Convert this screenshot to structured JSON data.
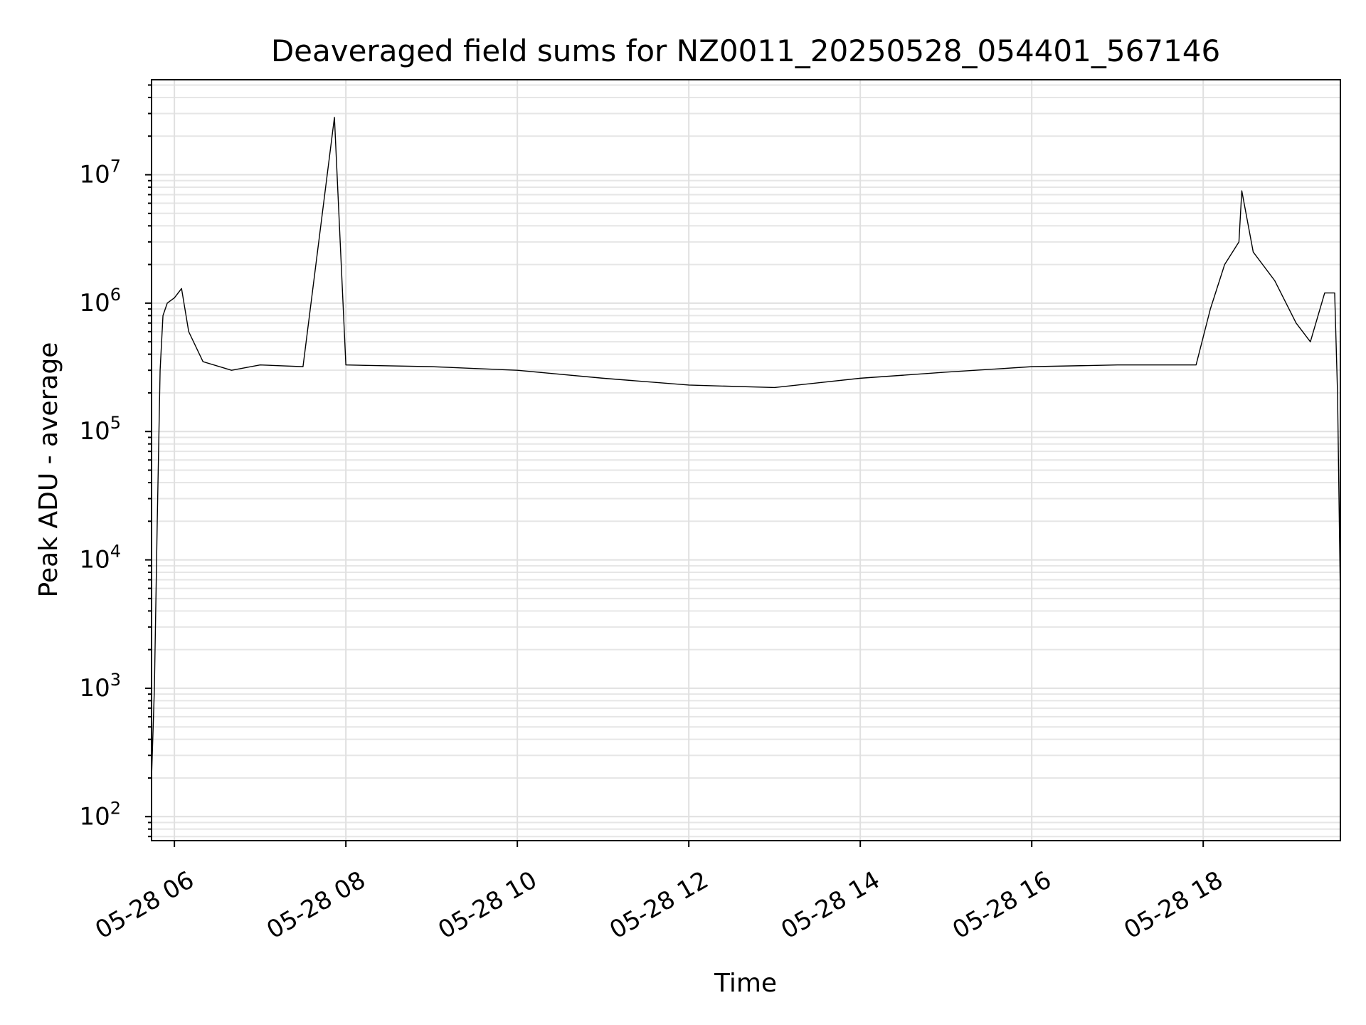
{
  "chart_data": {
    "type": "line",
    "title": "Deaveraged field sums for NZ0011_20250528_054401_567146",
    "xlabel": "Time",
    "ylabel": "Peak ADU - average",
    "x_ticks": [
      "05-28 06",
      "05-28 08",
      "05-28 10",
      "05-28 12",
      "05-28 14",
      "05-28 16",
      "05-28 18"
    ],
    "y_ticks": [
      {
        "base": "10",
        "exp": "2",
        "value": 100
      },
      {
        "base": "10",
        "exp": "3",
        "value": 1000
      },
      {
        "base": "10",
        "exp": "4",
        "value": 10000
      },
      {
        "base": "10",
        "exp": "5",
        "value": 100000
      },
      {
        "base": "10",
        "exp": "6",
        "value": 1000000
      },
      {
        "base": "10",
        "exp": "7",
        "value": 10000000
      }
    ],
    "y_scale": "log",
    "xlim": [
      "05-28 05:44",
      "05-28 19:36"
    ],
    "ylim": [
      65,
      55000000
    ],
    "grid": true,
    "series": [
      {
        "color": "#000000",
        "points": [
          [
            "05-28 05:44",
            200
          ],
          [
            "05-28 05:46",
            1000
          ],
          [
            "05-28 05:48",
            20000
          ],
          [
            "05-28 05:50",
            300000
          ],
          [
            "05-28 05:52",
            800000
          ],
          [
            "05-28 05:55",
            1000000
          ],
          [
            "05-28 06:00",
            1100000
          ],
          [
            "05-28 06:05",
            1300000
          ],
          [
            "05-28 06:10",
            600000
          ],
          [
            "05-28 06:20",
            350000
          ],
          [
            "05-28 06:40",
            300000
          ],
          [
            "05-28 07:00",
            330000
          ],
          [
            "05-28 07:30",
            320000
          ],
          [
            "05-28 07:52",
            28000000
          ],
          [
            "05-28 08:00",
            330000
          ],
          [
            "05-28 09:00",
            320000
          ],
          [
            "05-28 10:00",
            300000
          ],
          [
            "05-28 11:00",
            260000
          ],
          [
            "05-28 12:00",
            230000
          ],
          [
            "05-28 13:00",
            220000
          ],
          [
            "05-28 14:00",
            260000
          ],
          [
            "05-28 15:00",
            290000
          ],
          [
            "05-28 16:00",
            320000
          ],
          [
            "05-28 17:00",
            330000
          ],
          [
            "05-28 17:55",
            330000
          ],
          [
            "05-28 18:05",
            900000
          ],
          [
            "05-28 18:15",
            2000000
          ],
          [
            "05-28 18:25",
            3000000
          ],
          [
            "05-28 18:27",
            7500000
          ],
          [
            "05-28 18:35",
            2500000
          ],
          [
            "05-28 18:50",
            1500000
          ],
          [
            "05-28 19:05",
            700000
          ],
          [
            "05-28 19:15",
            500000
          ],
          [
            "05-28 19:25",
            1200000
          ],
          [
            "05-28 19:32",
            1200000
          ],
          [
            "05-28 19:34",
            200000
          ],
          [
            "05-28 19:36",
            5000
          ]
        ]
      }
    ]
  }
}
